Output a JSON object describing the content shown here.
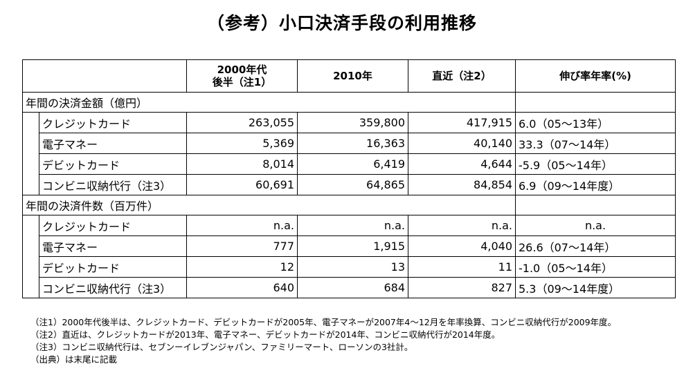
{
  "title": "（参考）小口決済手段の利用推移",
  "table": {
    "headers": [
      "2000年代\n後半（注1）",
      "2010年",
      "直近（注2）",
      "伸び率年率(%)"
    ],
    "sections": [
      {
        "label": "年間の決済金額（億円）",
        "rows": [
          {
            "name": "クレジットカード",
            "v2000s": "263,055",
            "v2010": "359,800",
            "recent": "417,915",
            "growth": "6.0（05～13年）"
          },
          {
            "name": "電子マネー",
            "v2000s": "5,369",
            "v2010": "16,363",
            "recent": "40,140",
            "growth": "33.3（07～14年）"
          },
          {
            "name": "デビットカード",
            "v2000s": "8,014",
            "v2010": "6,419",
            "recent": "4,644",
            "growth": "-5.9（05～14年）"
          },
          {
            "name": "コンビニ収納代行（注3）",
            "v2000s": "60,691",
            "v2010": "64,865",
            "recent": "84,854",
            "growth": "6.9（09～14年度）"
          }
        ]
      },
      {
        "label": "年間の決済件数（百万件）",
        "rows": [
          {
            "name": "クレジットカード",
            "v2000s": "n.a.",
            "v2010": "n.a.",
            "recent": "n.a.",
            "growth": "n.a."
          },
          {
            "name": "電子マネー",
            "v2000s": "777",
            "v2010": "1,915",
            "recent": "4,040",
            "growth": "26.6（07～14年）"
          },
          {
            "name": "デビットカード",
            "v2000s": "12",
            "v2010": "13",
            "recent": "11",
            "growth": "-1.0（05～14年）"
          },
          {
            "name": "コンビニ収納代行（注3）",
            "v2000s": "640",
            "v2010": "684",
            "recent": "827",
            "growth": "5.3（09～14年度）"
          }
        ]
      }
    ]
  },
  "notes": [
    "（注1）2000年代後半は、クレジットカード、デビットカードが2005年、電子マネーが2007年4～12月を年率換算、コンビニ収納代行が2009年度。",
    "（注2）直近は、クレジットカードが2013年、電子マネー、デビットカードが2014年、コンビニ収納代行が2014年度。",
    "（注3）コンビニ収納代行は、セブンーイレブンジャパン、ファミリーマート、ローソンの3社計。",
    "（出典）は末尾に記載"
  ]
}
